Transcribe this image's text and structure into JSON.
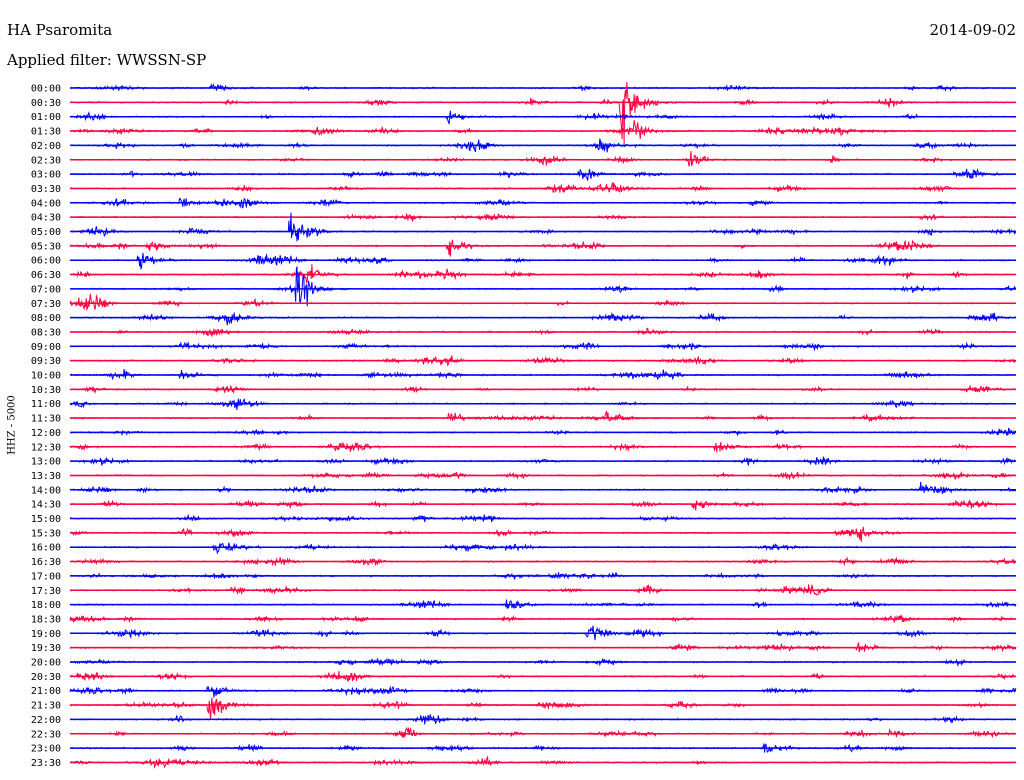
{
  "header": {
    "station": "HA Psaromita",
    "date": "2014-09-02",
    "filter": "Applied filter: WWSSN-SP"
  },
  "channel_label": "HHZ - 5000",
  "chart_data": {
    "type": "line",
    "title": "HA Psaromita",
    "ylabel": "HHZ - 5000",
    "rows": [
      "00:00",
      "00:30",
      "01:00",
      "01:30",
      "02:00",
      "02:30",
      "03:00",
      "03:30",
      "04:00",
      "04:30",
      "05:00",
      "05:30",
      "06:00",
      "06:30",
      "07:00",
      "07:30",
      "08:00",
      "08:30",
      "09:00",
      "09:30",
      "10:00",
      "10:30",
      "11:00",
      "11:30",
      "12:00",
      "12:30",
      "13:00",
      "13:30",
      "14:00",
      "14:30",
      "15:00",
      "15:30",
      "16:00",
      "16:30",
      "17:00",
      "17:30",
      "18:00",
      "18:30",
      "19:00",
      "19:30",
      "20:00",
      "20:30",
      "21:00",
      "21:30",
      "22:00",
      "22:30",
      "23:00",
      "23:30"
    ],
    "trace_colors": [
      "#0000ff",
      "#ff0040"
    ],
    "events": [
      {
        "row": "00:00",
        "minute": 4.5,
        "amplitude": 12
      },
      {
        "row": "00:30",
        "minute": 14.5,
        "amplitude": 8
      },
      {
        "row": "00:30",
        "minute": 17.5,
        "amplitude": 80
      },
      {
        "row": "01:00",
        "minute": 12.0,
        "amplitude": 14
      },
      {
        "row": "01:30",
        "minute": 17.9,
        "amplitude": 14
      },
      {
        "row": "02:00",
        "minute": 16.8,
        "amplitude": 20
      },
      {
        "row": "02:30",
        "minute": 19.6,
        "amplitude": 18
      },
      {
        "row": "03:00",
        "minute": 16.2,
        "amplitude": 10
      },
      {
        "row": "04:00",
        "minute": 3.5,
        "amplitude": 12
      },
      {
        "row": "05:00",
        "minute": 7.0,
        "amplitude": 40
      },
      {
        "row": "05:30",
        "minute": 2.5,
        "amplitude": 14
      },
      {
        "row": "05:30",
        "minute": 12.0,
        "amplitude": 18
      },
      {
        "row": "06:00",
        "minute": 2.2,
        "amplitude": 18
      },
      {
        "row": "06:30",
        "minute": 7.5,
        "amplitude": 20
      },
      {
        "row": "07:00",
        "minute": 7.2,
        "amplitude": 45
      },
      {
        "row": "08:00",
        "minute": 5.0,
        "amplitude": 14
      },
      {
        "row": "10:00",
        "minute": 3.5,
        "amplitude": 12
      },
      {
        "row": "11:30",
        "minute": 12.0,
        "amplitude": 16
      },
      {
        "row": "11:30",
        "minute": 17.0,
        "amplitude": 12
      },
      {
        "row": "12:30",
        "minute": 20.5,
        "amplitude": 14
      },
      {
        "row": "14:00",
        "minute": 27.0,
        "amplitude": 12
      },
      {
        "row": "14:30",
        "minute": 19.8,
        "amplitude": 12
      },
      {
        "row": "16:00",
        "minute": 4.6,
        "amplitude": 16
      },
      {
        "row": "18:00",
        "minute": 13.8,
        "amplitude": 18
      },
      {
        "row": "19:00",
        "minute": 16.4,
        "amplitude": 20
      },
      {
        "row": "19:30",
        "minute": 25.0,
        "amplitude": 10
      },
      {
        "row": "21:00",
        "minute": 4.4,
        "amplitude": 22
      },
      {
        "row": "21:30",
        "minute": 4.4,
        "amplitude": 40
      },
      {
        "row": "22:30",
        "minute": 26.0,
        "amplitude": 10
      },
      {
        "row": "23:00",
        "minute": 22.0,
        "amplitude": 18
      }
    ]
  }
}
